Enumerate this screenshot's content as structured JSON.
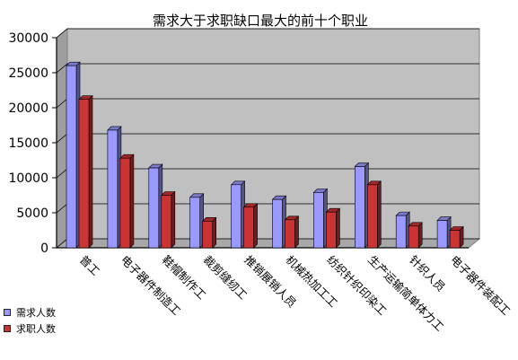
{
  "chart_data": {
    "type": "bar",
    "title": "需求大于求职缺口最大的前十个职业",
    "categories": [
      "普工",
      "电子器件制造工",
      "鞋帽制作工",
      "裁剪缝纫工",
      "推销展销人员",
      "机械热加工工",
      "纺织针织印染工",
      "生产运输简单体力工",
      "针织人员",
      "电子器件装配工"
    ],
    "series": [
      {
        "name": "需求人数",
        "values": [
          26000,
          16800,
          11400,
          7200,
          9000,
          6900,
          7900,
          11600,
          4600,
          3900
        ],
        "color": "#9999ff"
      },
      {
        "name": "求职人数",
        "values": [
          21200,
          12800,
          7500,
          3800,
          5800,
          4000,
          5100,
          9000,
          3100,
          2500
        ],
        "color": "#cc3333"
      }
    ],
    "ylim": [
      0,
      30000
    ],
    "yticks": [
      "0",
      "5000",
      "10000",
      "15000",
      "20000",
      "25000",
      "30000"
    ],
    "grid": true,
    "legend": "bottom-left",
    "plot_background": "#c0c0c0"
  }
}
